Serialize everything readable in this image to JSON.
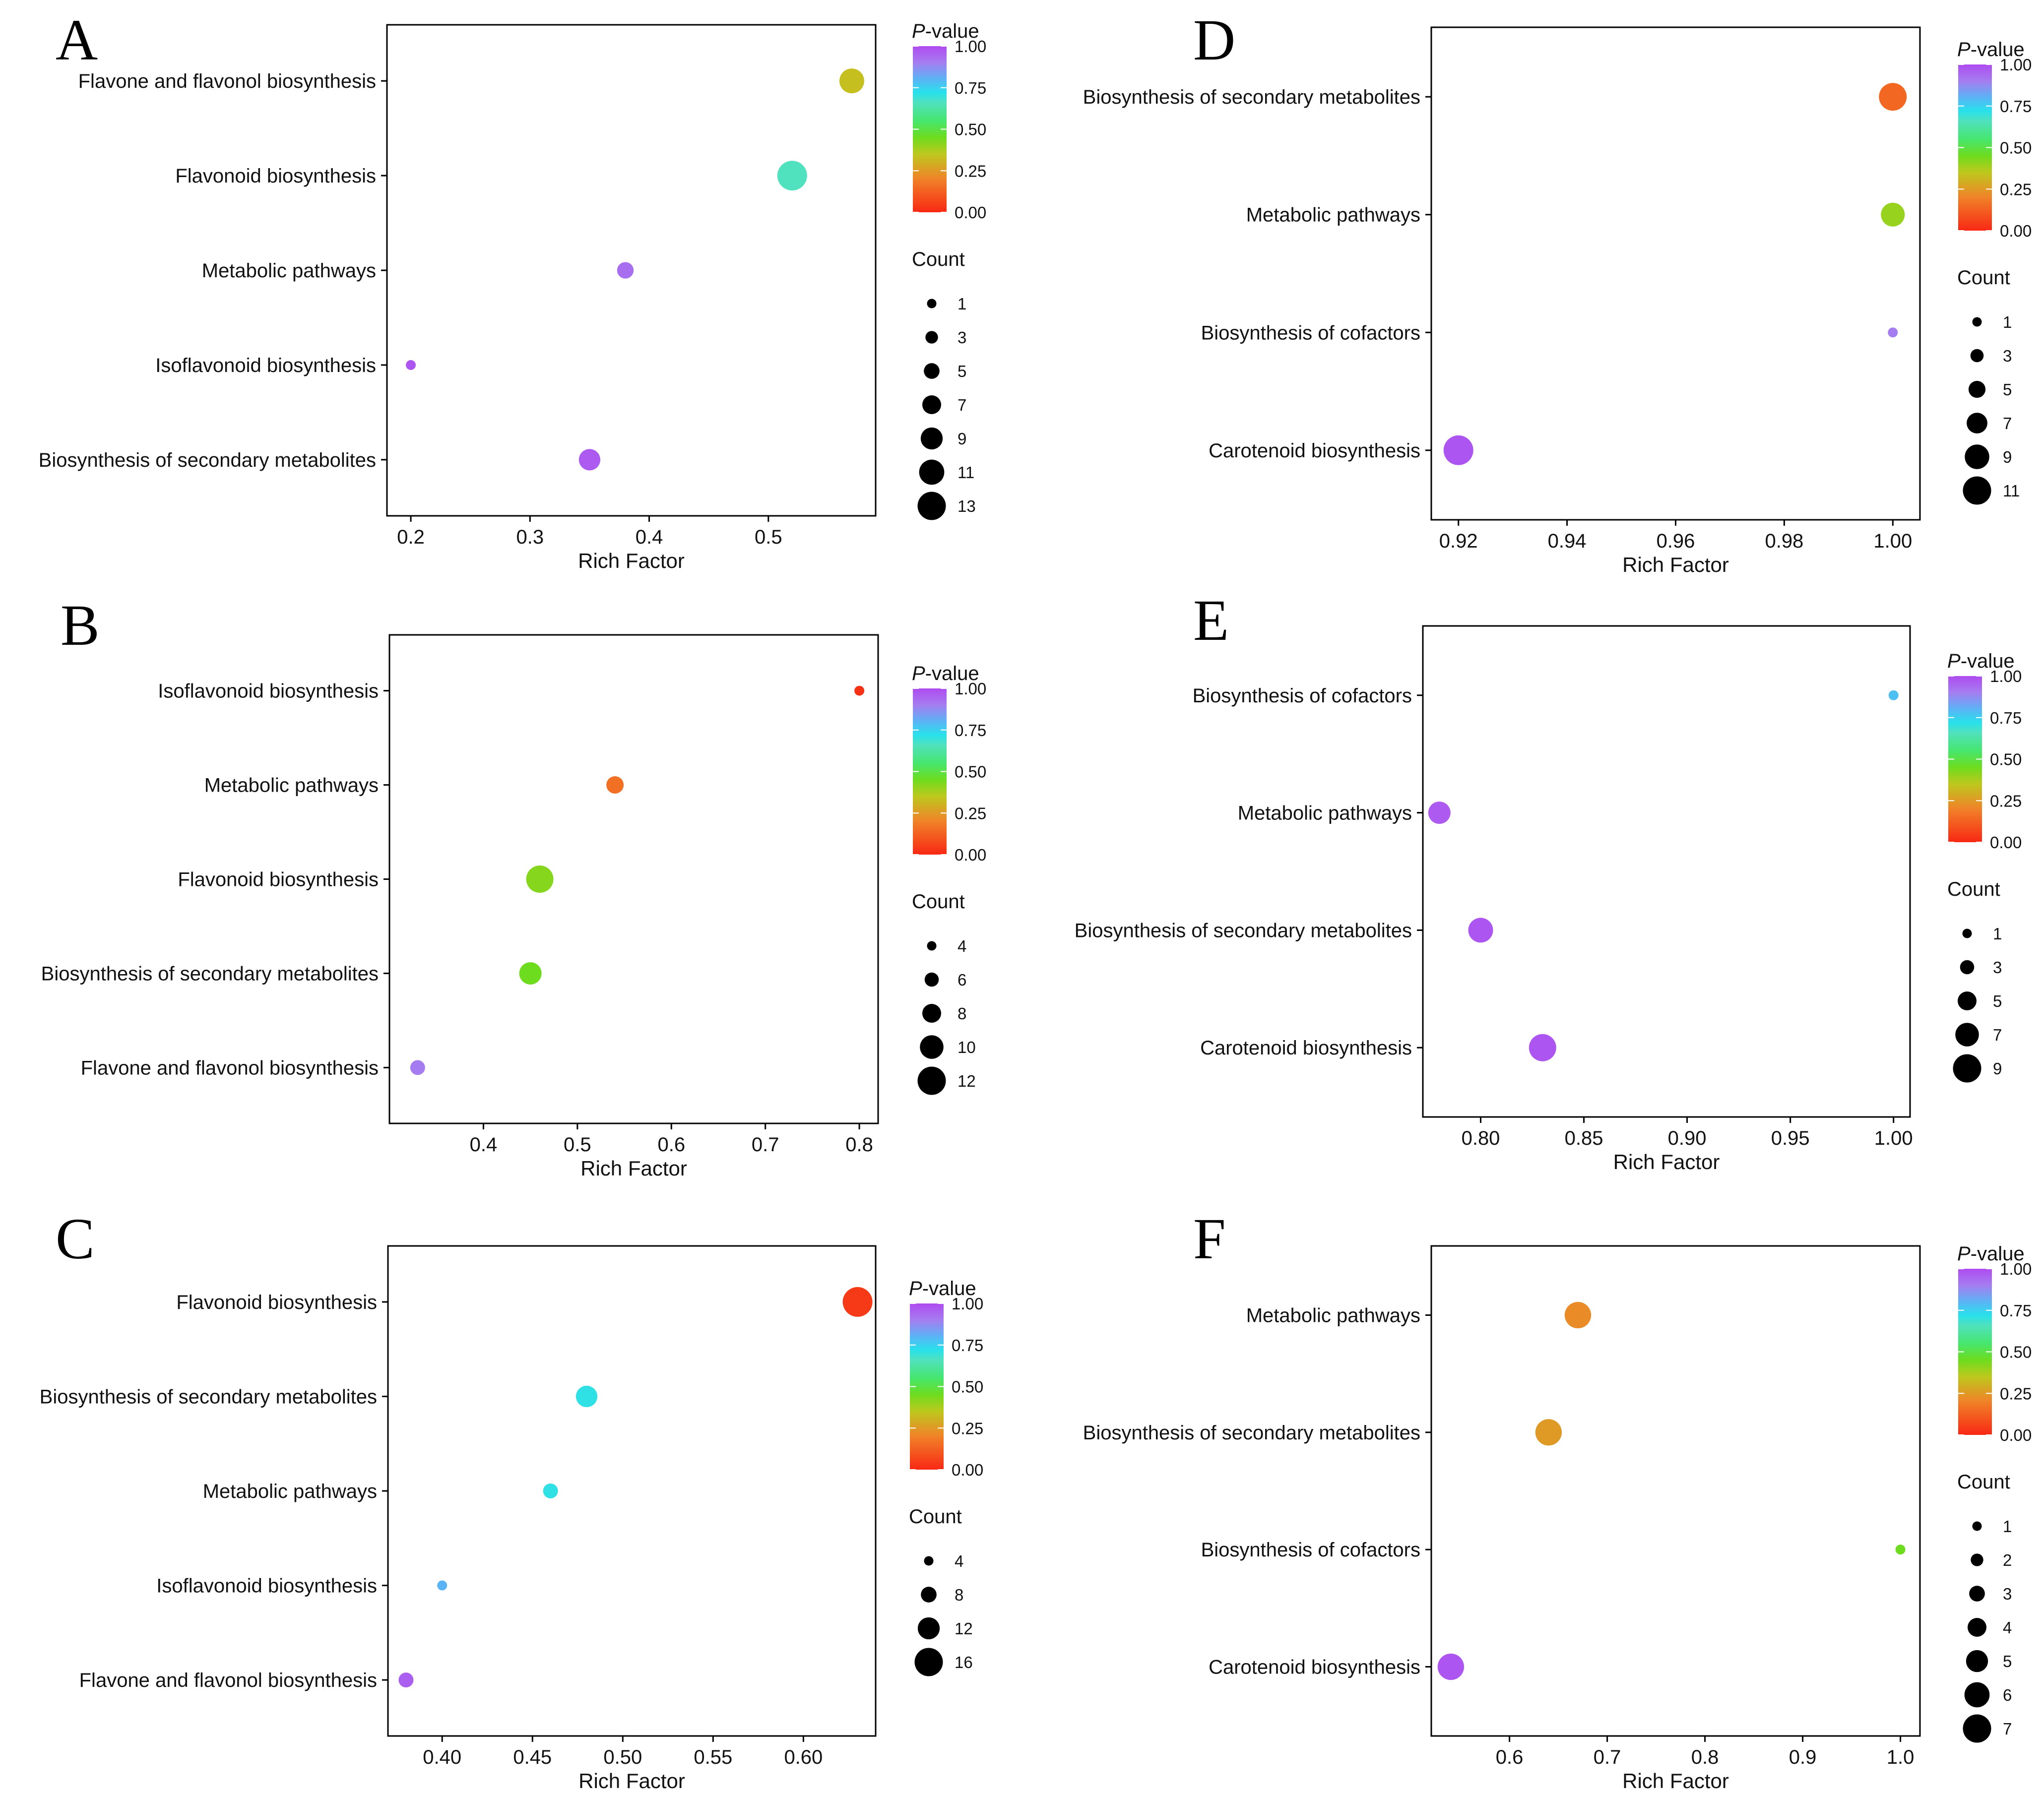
{
  "panels": [
    {
      "label": "A",
      "legend_title": "-value",
      "legend_title_italic": "P",
      "count_title": "Count",
      "chart_data": {
        "type": "scatter",
        "xlabel": "Rich Factor",
        "xlim": [
          0.18,
          0.59
        ],
        "xticks": [
          0.2,
          0.3,
          0.4,
          0.5
        ],
        "xtick_labels": [
          "0.2",
          "0.3",
          "0.4",
          "0.5"
        ],
        "categories": [
          "Flavone and flavonol biosynthesis",
          "Flavonoid biosynthesis",
          "Metabolic pathways",
          "Isoflavonoid biosynthesis",
          "Biosynthesis of secondary metabolites"
        ],
        "rich_factor": [
          0.57,
          0.52,
          0.38,
          0.2,
          0.35
        ],
        "counts": [
          10,
          13,
          5,
          1,
          8
        ],
        "pvalues": [
          0.33,
          0.66,
          0.93,
          0.98,
          0.97
        ],
        "colorbar_ticks": [
          1.0,
          0.75,
          0.5,
          0.25,
          0.0
        ],
        "colorbar_tick_labels": [
          "1.00",
          "0.75",
          "0.50",
          "0.25",
          "0.00"
        ],
        "count_legend": [
          "1",
          "3",
          "5",
          "7",
          "9",
          "11",
          "13"
        ],
        "count_range": [
          1,
          13
        ]
      }
    },
    {
      "label": "B",
      "legend_title": "-value",
      "legend_title_italic": "P",
      "count_title": "Count",
      "chart_data": {
        "type": "scatter",
        "xlabel": "Rich Factor",
        "xlim": [
          0.3,
          0.82
        ],
        "xticks": [
          0.4,
          0.5,
          0.6,
          0.7,
          0.8
        ],
        "xtick_labels": [
          "0.4",
          "0.5",
          "0.6",
          "0.7",
          "0.8"
        ],
        "categories": [
          "Isoflavonoid biosynthesis",
          "Metabolic pathways",
          "Flavonoid biosynthesis",
          "Biosynthesis of secondary metabolites",
          "Flavone and flavonol biosynthesis"
        ],
        "rich_factor": [
          0.8,
          0.54,
          0.46,
          0.45,
          0.33
        ],
        "counts": [
          4,
          7,
          11,
          9,
          6
        ],
        "pvalues": [
          0.02,
          0.16,
          0.42,
          0.45,
          0.9
        ],
        "colorbar_ticks": [
          1.0,
          0.75,
          0.5,
          0.25,
          0.0
        ],
        "colorbar_tick_labels": [
          "1.00",
          "0.75",
          "0.50",
          "0.25",
          "0.00"
        ],
        "count_legend": [
          "4",
          "6",
          "8",
          "10",
          "12"
        ],
        "count_range": [
          4,
          12
        ]
      }
    },
    {
      "label": "C",
      "legend_title": "-value",
      "legend_title_italic": "P",
      "count_title": "Count",
      "chart_data": {
        "type": "scatter",
        "xlabel": "Rich Factor",
        "xlim": [
          0.37,
          0.64
        ],
        "xticks": [
          0.4,
          0.45,
          0.5,
          0.55,
          0.6
        ],
        "xtick_labels": [
          "0.40",
          "0.45",
          "0.50",
          "0.55",
          "0.60"
        ],
        "categories": [
          "Flavonoid biosynthesis",
          "Biosynthesis of secondary metabolites",
          "Metabolic pathways",
          "Isoflavonoid biosynthesis",
          "Flavone and flavonol biosynthesis"
        ],
        "rich_factor": [
          0.63,
          0.48,
          0.46,
          0.4,
          0.38
        ],
        "counts": [
          17,
          11,
          7,
          2,
          7
        ],
        "pvalues": [
          0.04,
          0.71,
          0.71,
          0.8,
          0.96
        ],
        "colorbar_ticks": [
          1.0,
          0.75,
          0.5,
          0.25,
          0.0
        ],
        "colorbar_tick_labels": [
          "1.00",
          "0.75",
          "0.50",
          "0.25",
          "0.00"
        ],
        "count_legend": [
          "4",
          "8",
          "12",
          "16"
        ],
        "count_range": [
          4,
          16
        ]
      }
    },
    {
      "label": "D",
      "legend_title": "-value",
      "legend_title_italic": "P",
      "count_title": "Count",
      "chart_data": {
        "type": "scatter",
        "xlabel": "Rich Factor",
        "xlim": [
          0.915,
          1.005
        ],
        "xticks": [
          0.92,
          0.94,
          0.96,
          0.98,
          1.0
        ],
        "xtick_labels": [
          "0.92",
          "0.94",
          "0.96",
          "0.98",
          "1.00"
        ],
        "categories": [
          "Biosynthesis of secondary metabolites",
          "Metabolic pathways",
          "Biosynthesis of cofactors",
          "Carotenoid biosynthesis"
        ],
        "rich_factor": [
          1.0,
          1.0,
          1.0,
          0.92
        ],
        "counts": [
          10,
          8,
          1,
          11
        ],
        "pvalues": [
          0.14,
          0.4,
          0.9,
          0.98
        ],
        "colorbar_ticks": [
          1.0,
          0.75,
          0.5,
          0.25,
          0.0
        ],
        "colorbar_tick_labels": [
          "1.00",
          "0.75",
          "0.50",
          "0.25",
          "0.00"
        ],
        "count_legend": [
          "1",
          "3",
          "5",
          "7",
          "9",
          "11"
        ],
        "count_range": [
          1,
          11
        ]
      }
    },
    {
      "label": "E",
      "legend_title": "-value",
      "legend_title_italic": "P",
      "count_title": "Count",
      "chart_data": {
        "type": "scatter",
        "xlabel": "Rich Factor",
        "xlim": [
          0.772,
          1.008
        ],
        "xticks": [
          0.8,
          0.85,
          0.9,
          0.95,
          1.0
        ],
        "xtick_labels": [
          "0.80",
          "0.85",
          "0.90",
          "0.95",
          "1.00"
        ],
        "categories": [
          "Biosynthesis of cofactors",
          "Metabolic pathways",
          "Biosynthesis of secondary metabolites",
          "Carotenoid biosynthesis"
        ],
        "rich_factor": [
          1.0,
          0.78,
          0.8,
          0.83
        ],
        "counts": [
          1,
          6,
          7,
          8
        ],
        "pvalues": [
          0.78,
          0.97,
          0.98,
          0.98
        ],
        "colorbar_ticks": [
          1.0,
          0.75,
          0.5,
          0.25,
          0.0
        ],
        "colorbar_tick_labels": [
          "1.00",
          "0.75",
          "0.50",
          "0.25",
          "0.00"
        ],
        "count_legend": [
          "1",
          "3",
          "5",
          "7",
          "9"
        ],
        "count_range": [
          1,
          9
        ]
      }
    },
    {
      "label": "F",
      "legend_title": "-value",
      "legend_title_italic": "P",
      "count_title": "Count",
      "chart_data": {
        "type": "scatter",
        "xlabel": "Rich Factor",
        "xlim": [
          0.52,
          1.02
        ],
        "xticks": [
          0.6,
          0.7,
          0.8,
          0.9,
          1.0
        ],
        "xtick_labels": [
          "0.6",
          "0.7",
          "0.8",
          "0.9",
          "1.0"
        ],
        "categories": [
          "Metabolic pathways",
          "Biosynthesis of secondary metabolites",
          "Biosynthesis of cofactors",
          "Carotenoid biosynthesis"
        ],
        "rich_factor": [
          0.67,
          0.64,
          1.0,
          0.54
        ],
        "counts": [
          6,
          6,
          1,
          6
        ],
        "pvalues": [
          0.22,
          0.25,
          0.45,
          0.98
        ],
        "colorbar_ticks": [
          1.0,
          0.75,
          0.5,
          0.25,
          0.0
        ],
        "colorbar_tick_labels": [
          "1.00",
          "0.75",
          "0.50",
          "0.25",
          "0.00"
        ],
        "count_legend": [
          "1",
          "2",
          "3",
          "4",
          "5",
          "6",
          "7"
        ],
        "count_range": [
          1,
          7
        ]
      }
    }
  ]
}
